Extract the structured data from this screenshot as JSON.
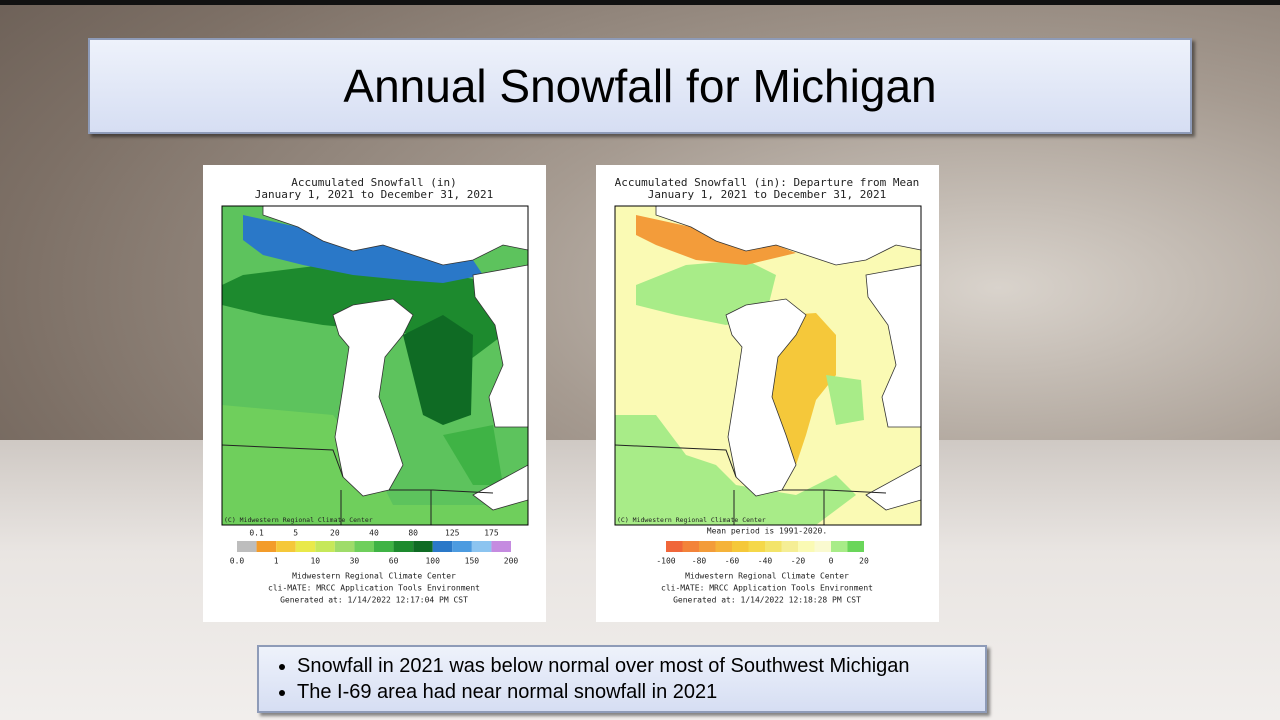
{
  "title": "Annual Snowfall for Michigan",
  "maps": [
    {
      "title_lines": [
        "Accumulated Snowfall (in)",
        "January 1, 2021 to December 31, 2021"
      ],
      "credit": "(C) Midwestern Regional Climate Center",
      "legend": {
        "upper_labels": [
          "0.1",
          "5",
          "20",
          "40",
          "80",
          "125",
          "175"
        ],
        "lower_labels": [
          "0.0",
          "1",
          "10",
          "30",
          "60",
          "100",
          "150",
          "200"
        ],
        "colors": [
          "#bdbdbd",
          "#f39c2a",
          "#f5c83a",
          "#e9e94a",
          "#c6e85a",
          "#9fdc6a",
          "#6fcf5c",
          "#3fb345",
          "#1d8a2e",
          "#0f6b24",
          "#2a78c8",
          "#4c9be0",
          "#8cc4f0",
          "#c58be0"
        ]
      },
      "footer": [
        "Midwestern Regional Climate Center",
        "cli-MATE: MRCC Application Tools Environment",
        "Generated at: 1/14/2022 12:17:04 PM CST"
      ]
    },
    {
      "title_lines": [
        "Accumulated Snowfall (in): Departure from Mean",
        "January 1, 2021 to December 31, 2021"
      ],
      "credit": "(C) Midwestern Regional Climate Center",
      "note": "Mean period is 1991-2020.",
      "legend": {
        "lower_labels": [
          "-100",
          "-80",
          "-60",
          "-40",
          "-20",
          "0",
          "20"
        ],
        "colors": [
          "#f0663a",
          "#f3833a",
          "#f39c3a",
          "#f5b33a",
          "#f5c83a",
          "#f5d84a",
          "#f3e46a",
          "#f5ee95",
          "#fafab4",
          "#fafad0",
          "#a8ec88",
          "#6ad65a"
        ]
      },
      "footer": [
        "Midwestern Regional Climate Center",
        "cli-MATE: MRCC Application Tools Environment",
        "Generated at: 1/14/2022 12:18:28 PM CST"
      ]
    }
  ],
  "bullets": [
    "Snowfall in 2021 was below normal over most of Southwest Michigan",
    "The I-69 area had near normal snowfall in 2021"
  ]
}
